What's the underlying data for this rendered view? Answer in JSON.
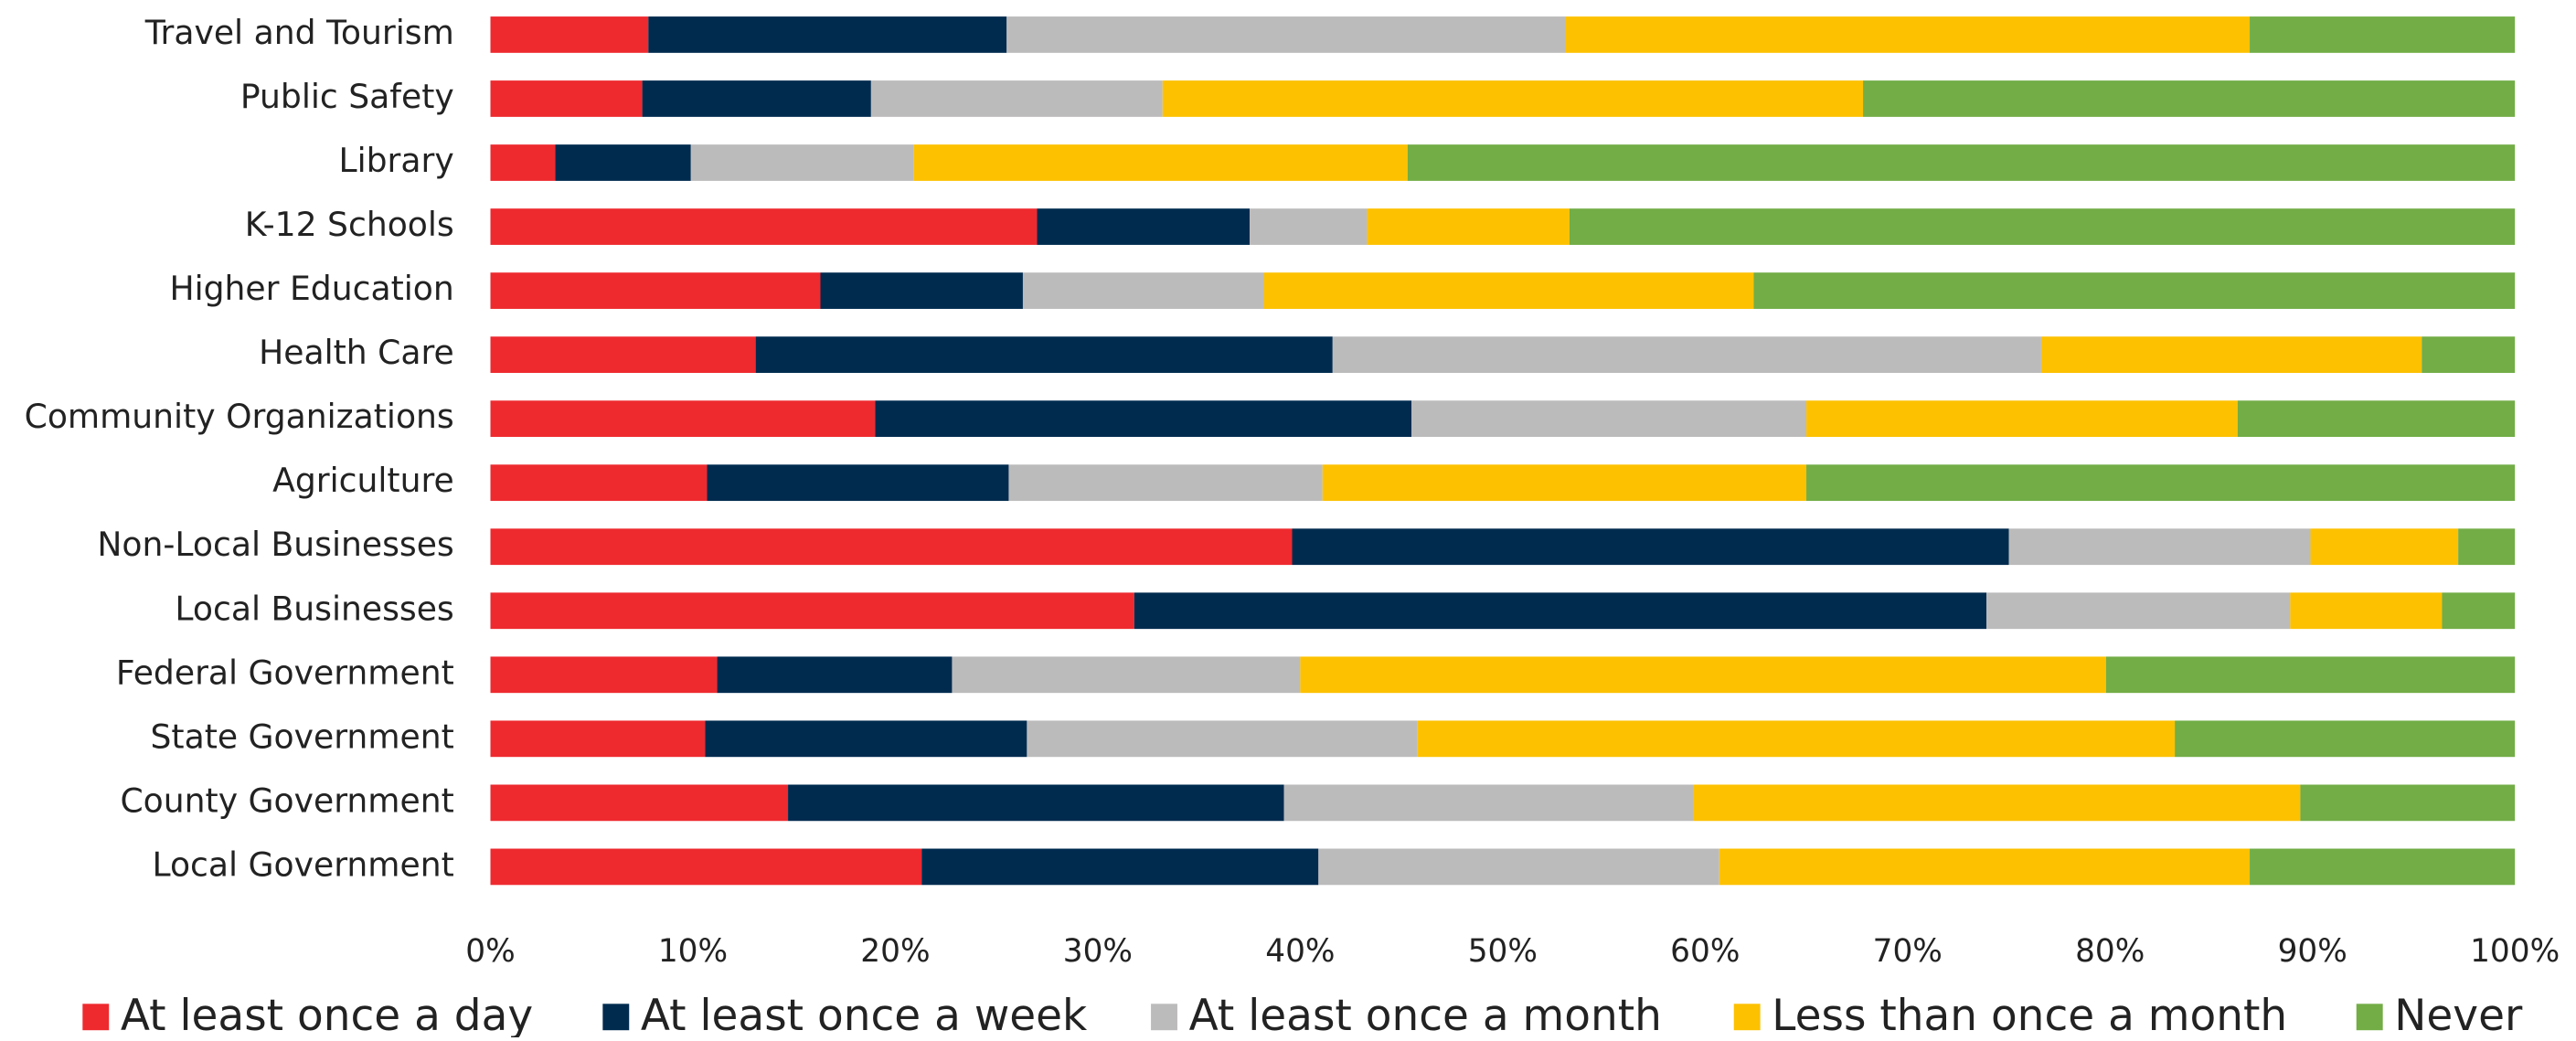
{
  "chart_data": {
    "type": "stacked_barh",
    "categories": [
      "Travel and Tourism",
      "Public Safety",
      "Library",
      "K-12 Schools",
      "Higher Education",
      "Health Care",
      "Community Organizations",
      "Agriculture",
      "Non-Local Businesses",
      "Local Businesses",
      "Federal Government",
      "State Government",
      "County Government",
      "Local Government"
    ],
    "series": [
      {
        "name": "At least once a day",
        "color": "#ee2a2f",
        "values": [
          7.8,
          7.5,
          3.2,
          27.0,
          16.3,
          13.1,
          19.0,
          10.7,
          39.6,
          31.8,
          11.2,
          10.6,
          14.7,
          21.3
        ]
      },
      {
        "name": "At least once a week",
        "color": "#002b4f",
        "values": [
          17.7,
          11.3,
          6.7,
          10.5,
          10.0,
          28.5,
          26.5,
          14.9,
          35.4,
          42.1,
          11.6,
          15.9,
          24.5,
          19.6
        ]
      },
      {
        "name": "At least once a month",
        "color": "#bcbbbb",
        "values": [
          27.6,
          14.4,
          11.0,
          5.8,
          11.9,
          35.0,
          19.5,
          15.5,
          14.9,
          15.0,
          17.2,
          19.3,
          20.2,
          19.8
        ]
      },
      {
        "name": "Less than once a month",
        "color": "#fdc100",
        "values": [
          33.8,
          34.6,
          24.4,
          10.0,
          24.2,
          18.8,
          21.3,
          23.9,
          7.3,
          7.5,
          39.8,
          37.4,
          30.0,
          26.2
        ]
      },
      {
        "name": "Never",
        "color": "#72ad46",
        "values": [
          13.1,
          32.2,
          54.7,
          46.7,
          37.6,
          4.6,
          13.7,
          35.0,
          2.8,
          3.6,
          20.2,
          16.8,
          10.6,
          13.1
        ]
      }
    ],
    "xlim": [
      0,
      100
    ],
    "xticks": [
      {
        "value": 0,
        "label": "0%"
      },
      {
        "value": 10,
        "label": "10%"
      },
      {
        "value": 20,
        "label": "20%"
      },
      {
        "value": 30,
        "label": "30%"
      },
      {
        "value": 40,
        "label": "40%"
      },
      {
        "value": 50,
        "label": "50%"
      },
      {
        "value": 60,
        "label": "60%"
      },
      {
        "value": 70,
        "label": "70%"
      },
      {
        "value": 80,
        "label": "80%"
      },
      {
        "value": 90,
        "label": "90%"
      },
      {
        "value": 100,
        "label": "100%"
      }
    ],
    "legend": "bottom"
  }
}
